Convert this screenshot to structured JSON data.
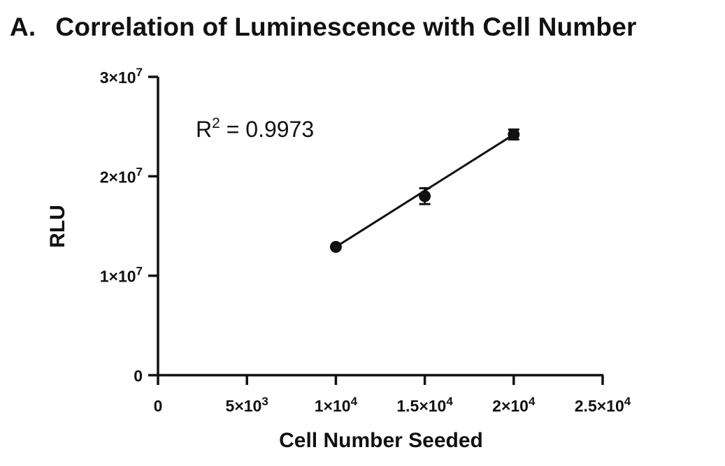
{
  "chart_data": {
    "type": "scatter",
    "panel_label": "A.",
    "title": "Correlation of Luminescence with Cell Number",
    "xlabel": "Cell Number Seeded",
    "ylabel": "RLU",
    "xlim": [
      0,
      25000
    ],
    "ylim": [
      0,
      30000000
    ],
    "x_ticks": [
      {
        "value": 0,
        "base": "0",
        "exp": ""
      },
      {
        "value": 5000,
        "base": "5×10",
        "exp": "3"
      },
      {
        "value": 10000,
        "base": "1×10",
        "exp": "4"
      },
      {
        "value": 15000,
        "base": "1.5×10",
        "exp": "4"
      },
      {
        "value": 20000,
        "base": "2×10",
        "exp": "4"
      },
      {
        "value": 25000,
        "base": "2.5×10",
        "exp": "4"
      }
    ],
    "y_ticks": [
      {
        "value": 0,
        "base": "0",
        "exp": ""
      },
      {
        "value": 10000000,
        "base": "1×10",
        "exp": "7"
      },
      {
        "value": 20000000,
        "base": "2×10",
        "exp": "7"
      },
      {
        "value": 30000000,
        "base": "3×10",
        "exp": "7"
      }
    ],
    "points": [
      {
        "x": 10000,
        "y": 12900000,
        "err": 0
      },
      {
        "x": 15000,
        "y": 18000000,
        "err": 800000
      },
      {
        "x": 20000,
        "y": 24200000,
        "err": 500000
      }
    ],
    "fit_line": {
      "x": [
        10000,
        20000
      ],
      "y": [
        12900000,
        24200000
      ]
    },
    "annotation": {
      "base": "R",
      "exp": "2",
      "rest": " = 0.9973"
    },
    "grid": false,
    "legend": "none"
  }
}
